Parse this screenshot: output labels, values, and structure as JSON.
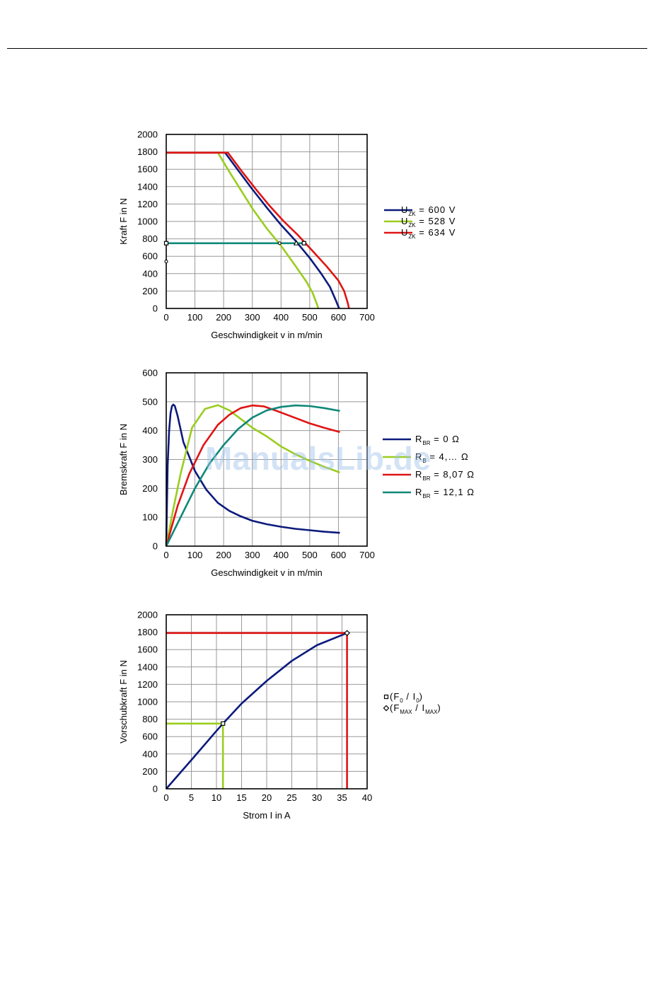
{
  "watermark": "ManualsLib.de",
  "colors": {
    "blue": "#0c1a7c",
    "green": "#9acd1e",
    "red": "#e01414",
    "teal": "#0f8878",
    "grid": "#999999"
  },
  "chart_data": [
    {
      "type": "line",
      "xlabel": "Geschwindigkeit v in m/min",
      "ylabel": "Kraft F in N",
      "xlim": [
        0,
        700
      ],
      "ylim": [
        0,
        2000
      ],
      "xticks": [
        0,
        100,
        200,
        300,
        400,
        500,
        600,
        700
      ],
      "yticks": [
        0,
        200,
        400,
        600,
        800,
        1000,
        1200,
        1400,
        1600,
        1800,
        2000
      ],
      "grid": true,
      "legend_position": "right",
      "series": [
        {
          "name": "U ZK = 600 V",
          "legend_main": "U",
          "legend_sub": "ZK",
          "legend_rest": " = 600 V",
          "color": "#0c1a7c",
          "x": [
            0,
            205,
            250,
            300,
            350,
            400,
            450,
            500,
            540,
            570,
            590,
            600,
            603
          ],
          "y": [
            1790,
            1790,
            1590,
            1370,
            1160,
            960,
            780,
            580,
            400,
            250,
            100,
            20,
            0
          ]
        },
        {
          "name": "U ZK = 528 V",
          "legend_main": "U",
          "legend_sub": "ZK",
          "legend_rest": " = 528 V",
          "color": "#9acd1e",
          "x": [
            0,
            180,
            220,
            260,
            300,
            350,
            400,
            450,
            490,
            510,
            525,
            530
          ],
          "y": [
            1790,
            1790,
            1570,
            1360,
            1150,
            920,
            720,
            490,
            300,
            180,
            50,
            0
          ]
        },
        {
          "name": "U ZK = 634 V",
          "legend_main": "U",
          "legend_sub": "ZK",
          "legend_rest": " = 634 V",
          "color": "#e01414",
          "x": [
            0,
            215,
            260,
            310,
            360,
            410,
            460,
            510,
            560,
            600,
            620,
            632,
            637
          ],
          "y": [
            1790,
            1790,
            1590,
            1380,
            1180,
            1000,
            840,
            660,
            480,
            320,
            200,
            70,
            0
          ]
        },
        {
          "name": "F0 line",
          "color": "#0f8878",
          "legend": false,
          "x": [
            0,
            480
          ],
          "y": [
            750,
            750
          ]
        }
      ],
      "markers": [
        {
          "x": 0,
          "y": 750,
          "shape": "square"
        },
        {
          "x": 0,
          "y": 540,
          "shape": "dot"
        },
        {
          "x": 395,
          "y": 750,
          "shape": "dot"
        },
        {
          "x": 453,
          "y": 750,
          "shape": "triangle"
        },
        {
          "x": 480,
          "y": 750,
          "shape": "square"
        }
      ]
    },
    {
      "type": "line",
      "xlabel": "Geschwindigkeit v in m/min",
      "ylabel": "Bremskraft F in N",
      "xlim": [
        0,
        700
      ],
      "ylim": [
        0,
        600
      ],
      "xticks": [
        0,
        100,
        200,
        300,
        400,
        500,
        600,
        700
      ],
      "yticks": [
        0,
        100,
        200,
        300,
        400,
        500,
        600
      ],
      "grid": true,
      "legend_position": "right",
      "series": [
        {
          "name": "R BR = 0 Ω",
          "legend_main": "R",
          "legend_sub": "BR",
          "legend_rest": " = 0 Ω",
          "color": "#0c1a7c",
          "x": [
            0,
            5,
            10,
            15,
            20,
            25,
            30,
            40,
            60,
            100,
            140,
            180,
            220,
            260,
            300,
            350,
            400,
            450,
            500,
            550,
            605
          ],
          "y": [
            0,
            280,
            400,
            460,
            485,
            490,
            485,
            450,
            360,
            260,
            195,
            150,
            122,
            103,
            88,
            76,
            67,
            60,
            55,
            50,
            46
          ]
        },
        {
          "name": "R B = 4,… Ω",
          "legend_main": "R",
          "legend_sub": "B",
          "legend_rest": " = 4,… Ω",
          "color": "#9acd1e",
          "x": [
            0,
            25,
            50,
            90,
            135,
            180,
            220,
            260,
            300,
            350,
            400,
            450,
            500,
            550,
            605
          ],
          "y": [
            0,
            130,
            250,
            410,
            475,
            488,
            470,
            440,
            410,
            380,
            345,
            318,
            295,
            275,
            255
          ]
        },
        {
          "name": "R BR = 8,07 Ω",
          "legend_main": "R",
          "legend_sub": "BR",
          "legend_rest": " = 8,07 Ω",
          "color": "#e01414",
          "x": [
            0,
            40,
            80,
            130,
            180,
            220,
            260,
            300,
            340,
            380,
            420,
            460,
            500,
            550,
            605
          ],
          "y": [
            0,
            140,
            250,
            350,
            420,
            455,
            478,
            487,
            484,
            470,
            455,
            440,
            425,
            410,
            395
          ]
        },
        {
          "name": "R BR = 12,1 Ω",
          "legend_main": "R",
          "legend_sub": "BR",
          "legend_rest": " = 12,1 Ω",
          "color": "#0f8878",
          "x": [
            0,
            50,
            100,
            150,
            200,
            250,
            300,
            350,
            400,
            450,
            500,
            550,
            605
          ],
          "y": [
            0,
            100,
            200,
            285,
            350,
            405,
            445,
            470,
            482,
            487,
            485,
            478,
            468
          ]
        }
      ]
    },
    {
      "type": "line",
      "xlabel": "Strom I in A",
      "ylabel": "Vorschubkraft F in N",
      "xlim": [
        0,
        40
      ],
      "ylim": [
        0,
        2000
      ],
      "xticks": [
        0,
        5,
        10,
        15,
        20,
        25,
        30,
        35,
        40
      ],
      "yticks": [
        0,
        200,
        400,
        600,
        800,
        1000,
        1200,
        1400,
        1600,
        1800,
        2000
      ],
      "grid": true,
      "legend_position": "right",
      "series": [
        {
          "name": "F(I)",
          "color": "#0c1a7c",
          "legend": false,
          "x": [
            0,
            5,
            10,
            11.3,
            15,
            20,
            25,
            30,
            36
          ],
          "y": [
            0,
            330,
            665,
            750,
            980,
            1240,
            1470,
            1650,
            1790
          ]
        },
        {
          "name": "F0 lines",
          "color": "#9acd1e",
          "legend": false,
          "x": [
            0,
            11.3,
            11.3
          ],
          "y": [
            750,
            750,
            0
          ]
        },
        {
          "name": "FMAX lines",
          "color": "#e01414",
          "legend": false,
          "x": [
            0,
            36,
            36
          ],
          "y": [
            1790,
            1790,
            0
          ]
        }
      ],
      "markers": [
        {
          "x": 11.3,
          "y": 750,
          "shape": "square"
        },
        {
          "x": 36,
          "y": 1790,
          "shape": "diamond"
        }
      ],
      "legend_entries": [
        {
          "shape": "square",
          "p1": "(F",
          "s1": "0",
          "p2": " / I",
          "s2": "0",
          "p3": ")"
        },
        {
          "shape": "diamond",
          "p1": "(F",
          "s1": "MAX",
          "p2": " / I",
          "s2": "MAX",
          "p3": ")"
        }
      ]
    }
  ]
}
